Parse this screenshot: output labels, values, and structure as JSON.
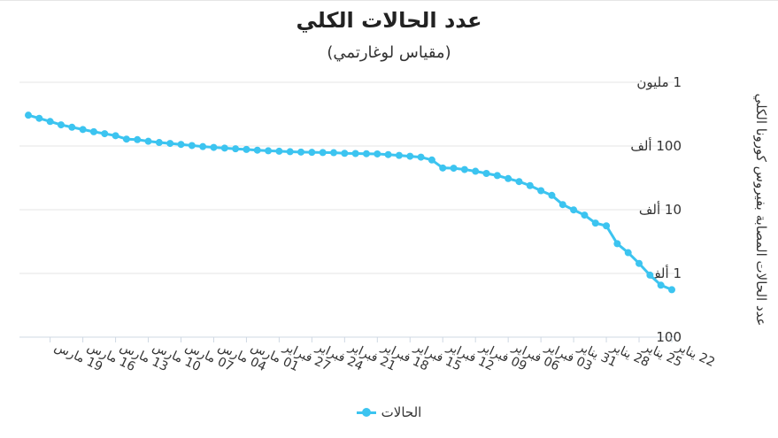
{
  "chart_data": {
    "type": "line",
    "title": "عدد الحالات الكلي",
    "subtitle": "(مقياس لوغارتمي)",
    "ylabel": "عدد الحالات المصابة بفيروس كورونا الكلي",
    "yscale": "log",
    "ylim": [
      100,
      1000000
    ],
    "yticks": [
      100,
      1000,
      10000,
      100000,
      1000000
    ],
    "ytick_labels": [
      "100",
      "1 ألف",
      "10 ألف",
      "100 ألف",
      "1 مليون"
    ],
    "x_direction": "right-to-left",
    "xtick_labels": [
      "22 يناير",
      "25 يناير",
      "28 يناير",
      "31 يناير",
      "03 فبراير",
      "06 فبراير",
      "09 فبراير",
      "12 فبراير",
      "15 فبراير",
      "18 فبراير",
      "21 فبراير",
      "24 فبراير",
      "27 فبراير",
      "01 مارس",
      "04 مارس",
      "07 مارس",
      "10 مارس",
      "13 مارس",
      "16 مارس",
      "19 مارس"
    ],
    "legend": "bottom",
    "series": [
      {
        "name": "الحالات",
        "color": "#3cc4f0",
        "x": [
          "22 يناير",
          "23 يناير",
          "24 يناير",
          "25 يناير",
          "26 يناير",
          "27 يناير",
          "28 يناير",
          "29 يناير",
          "30 يناير",
          "31 يناير",
          "01 فبراير",
          "02 فبراير",
          "03 فبراير",
          "04 فبراير",
          "05 فبراير",
          "06 فبراير",
          "07 فبراير",
          "08 فبراير",
          "09 فبراير",
          "10 فبراير",
          "11 فبراير",
          "12 فبراير",
          "13 فبراير",
          "14 فبراير",
          "15 فبراير",
          "16 فبراير",
          "17 فبراير",
          "18 فبراير",
          "19 فبراير",
          "20 فبراير",
          "21 فبراير",
          "22 فبراير",
          "23 فبراير",
          "24 فبراير",
          "25 فبراير",
          "26 فبراير",
          "27 فبراير",
          "28 فبراير",
          "29 فبراير",
          "01 مارس",
          "02 مارس",
          "03 مارس",
          "04 مارس",
          "05 مارس",
          "06 مارس",
          "07 مارس",
          "08 مارس",
          "09 مارس",
          "10 مارس",
          "11 مارس",
          "12 مارس",
          "13 مارس",
          "14 مارس",
          "15 مارس",
          "16 مارس",
          "17 مارس",
          "18 مارس",
          "19 مارس",
          "20 مارس",
          "21 مارس"
        ],
        "values": [
          555,
          654,
          941,
          1434,
          2118,
          2927,
          5578,
          6166,
          8234,
          9927,
          12038,
          16787,
          19881,
          23892,
          27636,
          30818,
          34392,
          37121,
          40151,
          42763,
          44802,
          45222,
          60370,
          66887,
          69032,
          71226,
          73260,
          75138,
          75641,
          76199,
          76843,
          78599,
          78985,
          79570,
          80415,
          81397,
          82756,
          84124,
          86013,
          88371,
          90309,
          92844,
          95124,
          97886,
          101800,
          105836,
          109835,
          113582,
          118582,
          125865,
          128343,
          145193,
          156097,
          167449,
          181546,
          197168,
          214915,
          242713,
          272167,
          304528
        ]
      }
    ]
  }
}
